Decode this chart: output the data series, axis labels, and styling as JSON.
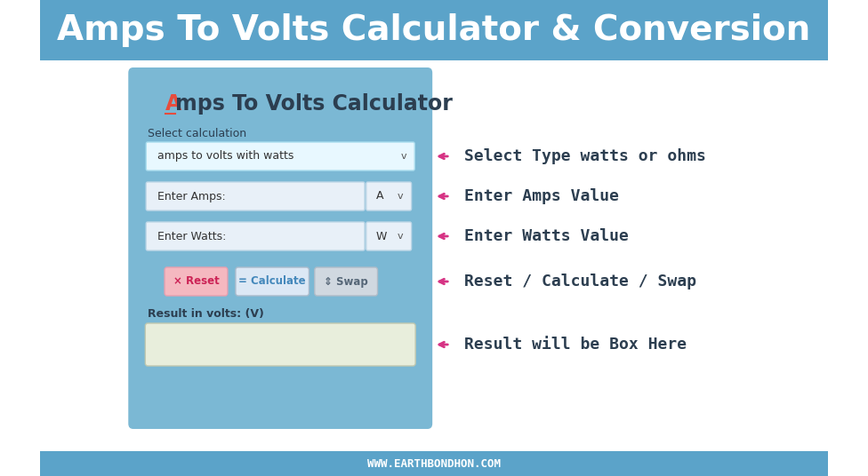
{
  "title": "Amps To Volts Calculator & Conversion",
  "title_bg": "#5ba3c9",
  "title_color": "#ffffff",
  "title_fontsize": 28,
  "body_bg": "#ffffff",
  "footer_text": "WWW.EARTHBONDHON.COM",
  "footer_bg": "#5ba3c9",
  "footer_color": "#ffffff",
  "card_bg": "#7bb8d4",
  "card_title": "Amps To Volts Calculator",
  "card_title_color": "#2c3e50",
  "card_title_A_color": "#e74c3c",
  "select_label": "Select calculation",
  "dropdown_text": "amps to volts with watts",
  "dropdown_bg": "#e8f8ff",
  "dropdown_border": "#aaddee",
  "field1_label": "Enter Amps:",
  "field1_unit": "A",
  "field2_label": "Enter Watts:",
  "field2_unit": "W",
  "field_bg": "#e8f0f8",
  "field_border": "#c0d8e8",
  "btn_reset_text": "× Reset",
  "btn_reset_bg": "#f5b8c0",
  "btn_reset_color": "#cc2255",
  "btn_calc_text": "= Calculate",
  "btn_calc_bg": "#dce8f5",
  "btn_calc_color": "#4488bb",
  "btn_swap_text": "⇕ Swap",
  "btn_swap_bg": "#d0d8e0",
  "btn_swap_color": "#556677",
  "result_label": "Result in volts: (V)",
  "result_box_bg": "#e8eedc",
  "arrow_color": "#d63384",
  "annotation1": "Select Type watts or ohms",
  "annotation2": "Enter Amps Value",
  "annotation3": "Enter Watts Value",
  "annotation4": "Reset / Calculate / Swap",
  "annotation5": "Result will be Box Here",
  "annotation_color": "#2c3e50",
  "annotation_fontsize": 13
}
